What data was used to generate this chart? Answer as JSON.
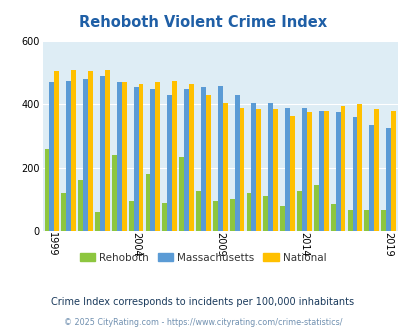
{
  "title": "Rehoboth Violent Crime Index",
  "years": [
    1999,
    2000,
    2001,
    2002,
    2003,
    2004,
    2005,
    2006,
    2007,
    2008,
    2009,
    2010,
    2011,
    2012,
    2013,
    2014,
    2015,
    2016,
    2017,
    2018,
    2019
  ],
  "rehoboth": [
    260,
    120,
    160,
    60,
    240,
    95,
    180,
    90,
    235,
    125,
    95,
    100,
    120,
    110,
    80,
    125,
    145,
    85,
    65,
    65,
    65
  ],
  "massachusetts": [
    470,
    475,
    480,
    490,
    470,
    455,
    450,
    430,
    450,
    455,
    460,
    430,
    405,
    405,
    390,
    390,
    380,
    375,
    360,
    335,
    325
  ],
  "national": [
    505,
    510,
    505,
    510,
    470,
    465,
    470,
    475,
    465,
    430,
    405,
    390,
    385,
    385,
    365,
    375,
    380,
    395,
    400,
    385,
    380
  ],
  "rehoboth_color": "#8dc63f",
  "massachusetts_color": "#5b9bd5",
  "national_color": "#ffc000",
  "bg_color": "#deedf5",
  "title_color": "#1f5fa6",
  "ylabel_max": 600,
  "yticks": [
    0,
    200,
    400,
    600
  ],
  "note_text": "Crime Index corresponds to incidents per 100,000 inhabitants",
  "credit_text": "© 2025 CityRating.com - https://www.cityrating.com/crime-statistics/",
  "note_color": "#1a3a5c",
  "credit_color": "#7090b0",
  "tick_years": [
    1999,
    2004,
    2009,
    2014,
    2019
  ]
}
